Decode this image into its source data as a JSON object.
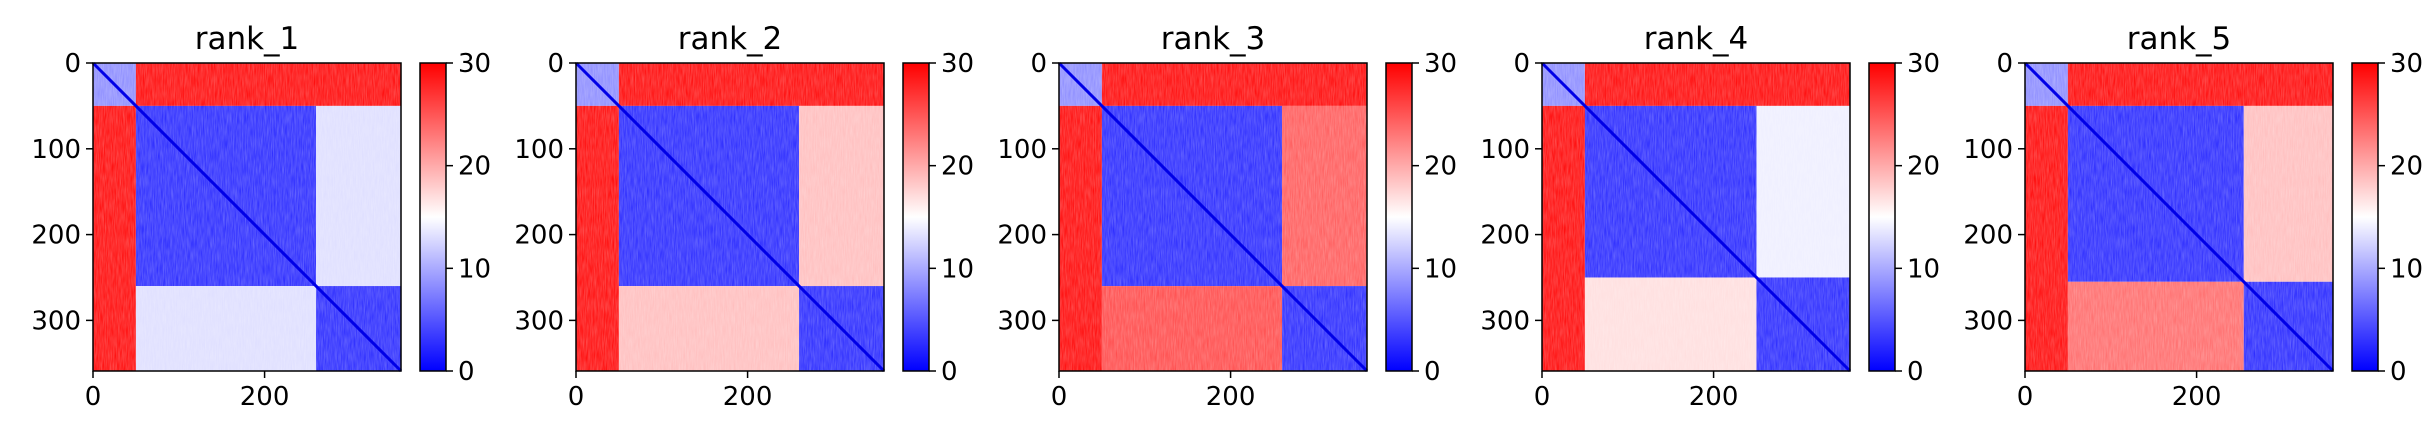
{
  "chart_data": [
    {
      "type": "heatmap",
      "title": "rank_1",
      "x_ticks": [
        "0",
        "200"
      ],
      "x_tick_values": [
        0,
        200
      ],
      "y_ticks": [
        "0",
        "100",
        "200",
        "300"
      ],
      "y_tick_values": [
        0,
        100,
        200,
        300
      ],
      "n_residues": 359,
      "xlim": [
        0,
        359
      ],
      "ylim": [
        359,
        0
      ],
      "colorbar": {
        "ticks": [
          "0",
          "10",
          "20",
          "30"
        ],
        "tick_values": [
          0,
          10,
          20,
          30
        ],
        "range": [
          0,
          30
        ],
        "colormap": "bwr"
      },
      "blocks": [
        {
          "rows": [
            0,
            50
          ],
          "cols": [
            0,
            50
          ],
          "value": 8
        },
        {
          "rows": [
            0,
            50
          ],
          "cols": [
            50,
            359
          ],
          "value": 30
        },
        {
          "rows": [
            50,
            359
          ],
          "cols": [
            0,
            50
          ],
          "value": 30
        },
        {
          "rows": [
            50,
            260
          ],
          "cols": [
            50,
            260
          ],
          "value": 2
        },
        {
          "rows": [
            50,
            260
          ],
          "cols": [
            260,
            359
          ],
          "value": 13
        },
        {
          "rows": [
            260,
            359
          ],
          "cols": [
            50,
            260
          ],
          "value": 13
        },
        {
          "rows": [
            260,
            359
          ],
          "cols": [
            260,
            359
          ],
          "value": 2
        }
      ]
    },
    {
      "type": "heatmap",
      "title": "rank_2",
      "x_ticks": [
        "0",
        "200"
      ],
      "x_tick_values": [
        0,
        200
      ],
      "y_ticks": [
        "0",
        "100",
        "200",
        "300"
      ],
      "y_tick_values": [
        0,
        100,
        200,
        300
      ],
      "n_residues": 359,
      "xlim": [
        0,
        359
      ],
      "ylim": [
        359,
        0
      ],
      "colorbar": {
        "ticks": [
          "0",
          "10",
          "20",
          "30"
        ],
        "tick_values": [
          0,
          10,
          20,
          30
        ],
        "range": [
          0,
          30
        ],
        "colormap": "bwr"
      },
      "blocks": [
        {
          "rows": [
            0,
            50
          ],
          "cols": [
            0,
            50
          ],
          "value": 8
        },
        {
          "rows": [
            0,
            50
          ],
          "cols": [
            50,
            359
          ],
          "value": 30
        },
        {
          "rows": [
            50,
            359
          ],
          "cols": [
            0,
            50
          ],
          "value": 30
        },
        {
          "rows": [
            50,
            260
          ],
          "cols": [
            50,
            260
          ],
          "value": 2
        },
        {
          "rows": [
            50,
            260
          ],
          "cols": [
            260,
            359
          ],
          "value": 19
        },
        {
          "rows": [
            260,
            359
          ],
          "cols": [
            50,
            260
          ],
          "value": 19
        },
        {
          "rows": [
            260,
            359
          ],
          "cols": [
            260,
            359
          ],
          "value": 2
        }
      ]
    },
    {
      "type": "heatmap",
      "title": "rank_3",
      "x_ticks": [
        "0",
        "200"
      ],
      "x_tick_values": [
        0,
        200
      ],
      "y_ticks": [
        "0",
        "100",
        "200",
        "300"
      ],
      "y_tick_values": [
        0,
        100,
        200,
        300
      ],
      "n_residues": 359,
      "xlim": [
        0,
        359
      ],
      "ylim": [
        359,
        0
      ],
      "colorbar": {
        "ticks": [
          "0",
          "10",
          "20",
          "30"
        ],
        "tick_values": [
          0,
          10,
          20,
          30
        ],
        "range": [
          0,
          30
        ],
        "colormap": "bwr"
      },
      "blocks": [
        {
          "rows": [
            0,
            50
          ],
          "cols": [
            0,
            50
          ],
          "value": 8
        },
        {
          "rows": [
            0,
            50
          ],
          "cols": [
            50,
            359
          ],
          "value": 30
        },
        {
          "rows": [
            50,
            359
          ],
          "cols": [
            0,
            50
          ],
          "value": 30
        },
        {
          "rows": [
            50,
            260
          ],
          "cols": [
            50,
            260
          ],
          "value": 2
        },
        {
          "rows": [
            50,
            260
          ],
          "cols": [
            260,
            359
          ],
          "value": 25
        },
        {
          "rows": [
            260,
            359
          ],
          "cols": [
            50,
            260
          ],
          "value": 26
        },
        {
          "rows": [
            260,
            359
          ],
          "cols": [
            260,
            359
          ],
          "value": 2
        }
      ]
    },
    {
      "type": "heatmap",
      "title": "rank_4",
      "x_ticks": [
        "0",
        "200"
      ],
      "x_tick_values": [
        0,
        200
      ],
      "y_ticks": [
        "0",
        "100",
        "200",
        "300"
      ],
      "y_tick_values": [
        0,
        100,
        200,
        300
      ],
      "n_residues": 359,
      "xlim": [
        0,
        359
      ],
      "ylim": [
        359,
        0
      ],
      "colorbar": {
        "ticks": [
          "0",
          "10",
          "20",
          "30"
        ],
        "tick_values": [
          0,
          10,
          20,
          30
        ],
        "range": [
          0,
          30
        ],
        "colormap": "bwr"
      },
      "blocks": [
        {
          "rows": [
            0,
            50
          ],
          "cols": [
            0,
            50
          ],
          "value": 8
        },
        {
          "rows": [
            0,
            50
          ],
          "cols": [
            50,
            359
          ],
          "value": 30
        },
        {
          "rows": [
            50,
            359
          ],
          "cols": [
            0,
            50
          ],
          "value": 30
        },
        {
          "rows": [
            50,
            250
          ],
          "cols": [
            50,
            250
          ],
          "value": 2
        },
        {
          "rows": [
            50,
            250
          ],
          "cols": [
            250,
            359
          ],
          "value": 14
        },
        {
          "rows": [
            250,
            359
          ],
          "cols": [
            50,
            250
          ],
          "value": 17
        },
        {
          "rows": [
            250,
            359
          ],
          "cols": [
            250,
            359
          ],
          "value": 2
        }
      ]
    },
    {
      "type": "heatmap",
      "title": "rank_5",
      "x_ticks": [
        "0",
        "200"
      ],
      "x_tick_values": [
        0,
        200
      ],
      "y_ticks": [
        "0",
        "100",
        "200",
        "300"
      ],
      "y_tick_values": [
        0,
        100,
        200,
        300
      ],
      "n_residues": 359,
      "xlim": [
        0,
        359
      ],
      "ylim": [
        359,
        0
      ],
      "colorbar": {
        "ticks": [
          "0",
          "10",
          "20",
          "30"
        ],
        "tick_values": [
          0,
          10,
          20,
          30
        ],
        "range": [
          0,
          30
        ],
        "colormap": "bwr"
      },
      "blocks": [
        {
          "rows": [
            0,
            50
          ],
          "cols": [
            0,
            50
          ],
          "value": 8
        },
        {
          "rows": [
            0,
            50
          ],
          "cols": [
            50,
            359
          ],
          "value": 30
        },
        {
          "rows": [
            50,
            359
          ],
          "cols": [
            0,
            50
          ],
          "value": 30
        },
        {
          "rows": [
            50,
            255
          ],
          "cols": [
            50,
            255
          ],
          "value": 2
        },
        {
          "rows": [
            50,
            255
          ],
          "cols": [
            255,
            359
          ],
          "value": 19
        },
        {
          "rows": [
            255,
            359
          ],
          "cols": [
            50,
            255
          ],
          "value": 24
        },
        {
          "rows": [
            255,
            359
          ],
          "cols": [
            255,
            359
          ],
          "value": 2
        }
      ]
    }
  ]
}
